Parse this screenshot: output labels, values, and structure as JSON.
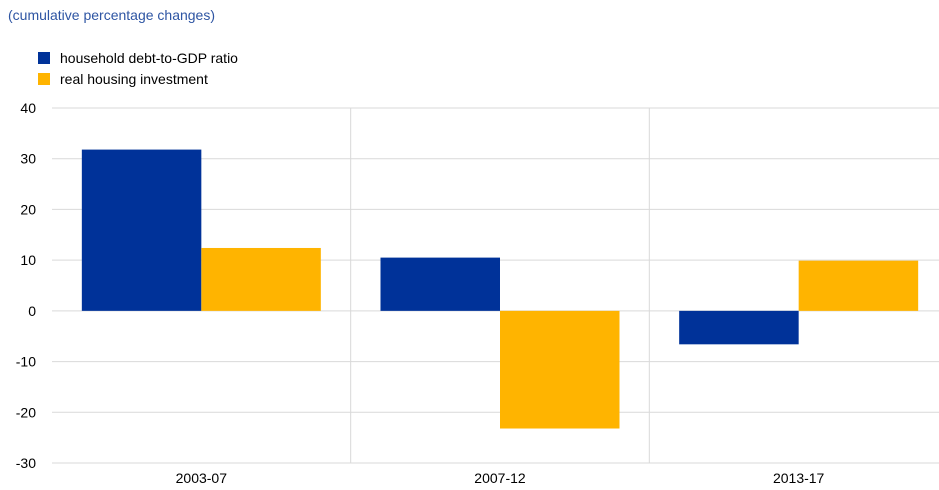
{
  "subtitle": "(cumulative percentage changes)",
  "chart_data": {
    "type": "bar",
    "categories": [
      "2003-07",
      "2007-12",
      "2013-17"
    ],
    "series": [
      {
        "name": "household debt-to-GDP ratio",
        "color": "#003299",
        "values": [
          31.8,
          10.5,
          -6.6
        ]
      },
      {
        "name": "real housing investment",
        "color": "#ffb400",
        "values": [
          12.4,
          -23.2,
          9.9
        ]
      }
    ],
    "ylim": [
      -30,
      40
    ],
    "yticks": [
      -30,
      -20,
      -10,
      0,
      10,
      20,
      30,
      40
    ],
    "grid": true,
    "legend": "top-left"
  }
}
